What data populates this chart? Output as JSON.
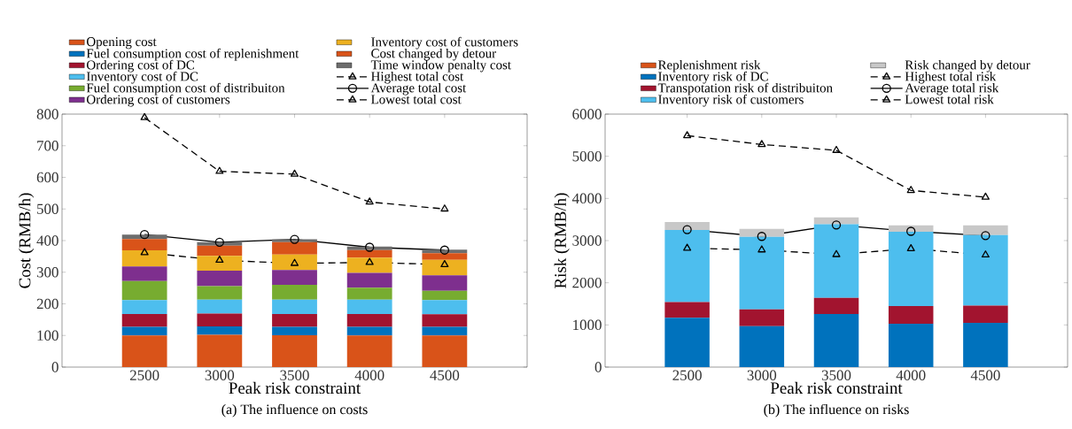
{
  "chart_data": [
    {
      "type": "bar",
      "stacked": true,
      "title": "(a) The influence on costs",
      "xlabel": "Peak risk constraint",
      "ylabel": "Cost (RMB/h)",
      "categories": [
        "2500",
        "3000",
        "3500",
        "4000",
        "4500"
      ],
      "ylim": [
        0,
        800
      ],
      "yticks": [
        0,
        100,
        200,
        300,
        400,
        500,
        600,
        700,
        800
      ],
      "legend": "top",
      "series": [
        {
          "name": "Opening cost",
          "color": "#d95319",
          "values": [
            100,
            102,
            101,
            100,
            100
          ]
        },
        {
          "name": "Fuel consumption cost of replenishment",
          "color": "#0072bd",
          "values": [
            27,
            27,
            26,
            27,
            27
          ]
        },
        {
          "name": "Ordering cost of DC",
          "color": "#a2142f",
          "values": [
            41,
            40,
            41,
            41,
            40
          ]
        },
        {
          "name": "Inventory cost of DC",
          "color": "#4dbeee",
          "values": [
            44,
            44,
            45,
            45,
            45
          ]
        },
        {
          "name": "Fuel consumption cost of distribuiton",
          "color": "#77ac30",
          "values": [
            60,
            43,
            47,
            38,
            29
          ]
        },
        {
          "name": "Ordering cost of customers",
          "color": "#7e2f8e",
          "values": [
            46,
            49,
            47,
            47,
            49
          ]
        },
        {
          "name": "Inventory cost of customers",
          "color": "#edb120",
          "values": [
            51,
            47,
            49,
            48,
            49
          ]
        },
        {
          "name": "Cost changed by detour",
          "color": "#d95319",
          "values": [
            36,
            32,
            39,
            24,
            21
          ]
        },
        {
          "name": "Time window penalty cost",
          "color": "#6d6d6d",
          "values": [
            14,
            11,
            9,
            11,
            11
          ]
        },
        {
          "name": "Highest total cost",
          "type": "line",
          "color": "#000000",
          "marker": "triangle",
          "line_style": "dashed",
          "values": [
            789,
            619,
            610,
            522,
            500
          ]
        },
        {
          "name": "Average total cost",
          "type": "line",
          "color": "#000000",
          "marker": "circle",
          "line_style": "solid",
          "values": [
            419,
            395,
            404,
            379,
            370
          ]
        },
        {
          "name": "Lowest total cost",
          "type": "line",
          "color": "#000000",
          "marker": "triangle",
          "line_style": "dashed",
          "values": [
            362,
            338,
            328,
            331,
            324
          ]
        }
      ]
    },
    {
      "type": "bar",
      "stacked": true,
      "title": "(b) The influence on risks",
      "xlabel": "Peak risk constraint",
      "ylabel": "Risk (RMB/h)",
      "categories": [
        "2500",
        "3000",
        "3500",
        "4000",
        "4500"
      ],
      "ylim": [
        0,
        6000
      ],
      "yticks": [
        0,
        1000,
        2000,
        3000,
        4000,
        5000,
        6000
      ],
      "legend": "top",
      "series": [
        {
          "name": "Replenishment risk",
          "color": "#d95319",
          "values": [
            0,
            0,
            0,
            0,
            0
          ]
        },
        {
          "name": "Inventory risk of DC",
          "color": "#0072bd",
          "values": [
            1170,
            970,
            1260,
            1030,
            1050
          ]
        },
        {
          "name": "Transpotation risk of distribuiton",
          "color": "#a2142f",
          "values": [
            370,
            400,
            380,
            420,
            410
          ]
        },
        {
          "name": "Inventory risk of customers",
          "color": "#4dbeee",
          "values": [
            1710,
            1720,
            1750,
            1760,
            1670
          ]
        },
        {
          "name": "Risk changed by detour",
          "color": "#c8c8c8",
          "values": [
            190,
            190,
            160,
            150,
            230
          ]
        },
        {
          "name": "Highest total risk",
          "type": "line",
          "color": "#000000",
          "marker": "triangle",
          "line_style": "dashed",
          "values": [
            5490,
            5280,
            5140,
            4190,
            4030
          ]
        },
        {
          "name": "Average total risk",
          "type": "line",
          "color": "#000000",
          "marker": "circle",
          "line_style": "solid",
          "values": [
            3260,
            3100,
            3370,
            3220,
            3120
          ]
        },
        {
          "name": "Lowest total risk",
          "type": "line",
          "color": "#000000",
          "marker": "triangle",
          "line_style": "dashed",
          "values": [
            2820,
            2780,
            2670,
            2810,
            2660
          ]
        }
      ]
    }
  ]
}
